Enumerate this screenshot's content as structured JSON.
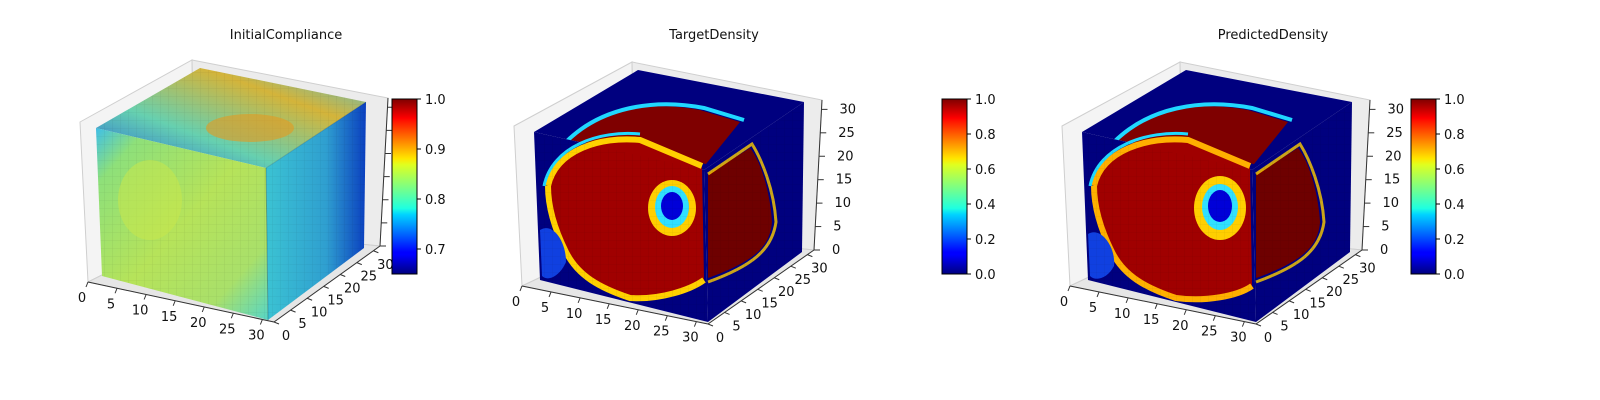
{
  "chart_data": [
    {
      "type": "voxel-3d",
      "title": "InitialCompliance",
      "colormap": "jet",
      "x_ticks": [
        "0",
        "5",
        "10",
        "15",
        "20",
        "25",
        "30"
      ],
      "y_ticks": [
        "0",
        "5",
        "10",
        "15",
        "20",
        "25",
        "30"
      ],
      "z_ticks": [],
      "xlim": [
        0,
        32
      ],
      "ylim": [
        0,
        32
      ],
      "zlim": [
        0,
        32
      ],
      "colorbar": {
        "min": 0.65,
        "max": 1.0,
        "ticks": [
          "0.7",
          "0.8",
          "0.9",
          "1.0"
        ],
        "tick_values": [
          0.7,
          0.8,
          0.9,
          1.0
        ]
      },
      "grid": true
    },
    {
      "type": "voxel-3d",
      "title": "TargetDensity",
      "colormap": "jet",
      "x_ticks": [
        "0",
        "5",
        "10",
        "15",
        "20",
        "25",
        "30"
      ],
      "y_ticks": [
        "0",
        "5",
        "10",
        "15",
        "20",
        "25",
        "30"
      ],
      "z_ticks": [
        "0",
        "5",
        "10",
        "15",
        "20",
        "25",
        "30"
      ],
      "xlim": [
        0,
        32
      ],
      "ylim": [
        0,
        32
      ],
      "zlim": [
        0,
        32
      ],
      "colorbar": {
        "min": 0.0,
        "max": 1.0,
        "ticks": [
          "0.0",
          "0.2",
          "0.4",
          "0.6",
          "0.8",
          "1.0"
        ],
        "tick_values": [
          0.0,
          0.2,
          0.4,
          0.6,
          0.8,
          1.0
        ]
      },
      "grid": true
    },
    {
      "type": "voxel-3d",
      "title": "PredictedDensity",
      "colormap": "jet",
      "x_ticks": [
        "0",
        "5",
        "10",
        "15",
        "20",
        "25",
        "30"
      ],
      "y_ticks": [
        "0",
        "5",
        "10",
        "15",
        "20",
        "25",
        "30"
      ],
      "z_ticks": [
        "0",
        "5",
        "10",
        "15",
        "20",
        "25",
        "30"
      ],
      "xlim": [
        0,
        32
      ],
      "ylim": [
        0,
        32
      ],
      "zlim": [
        0,
        32
      ],
      "colorbar": {
        "min": 0.0,
        "max": 1.0,
        "ticks": [
          "0.0",
          "0.2",
          "0.4",
          "0.6",
          "0.8",
          "1.0"
        ],
        "tick_values": [
          0.0,
          0.2,
          0.4,
          0.6,
          0.8,
          1.0
        ]
      },
      "grid": true
    }
  ],
  "colors": {
    "pane_face": "#f2f2f2",
    "pane_edge": "#d0d0d0",
    "axis_line": "#333333",
    "low": "#00007f",
    "high": "#7f0000"
  }
}
